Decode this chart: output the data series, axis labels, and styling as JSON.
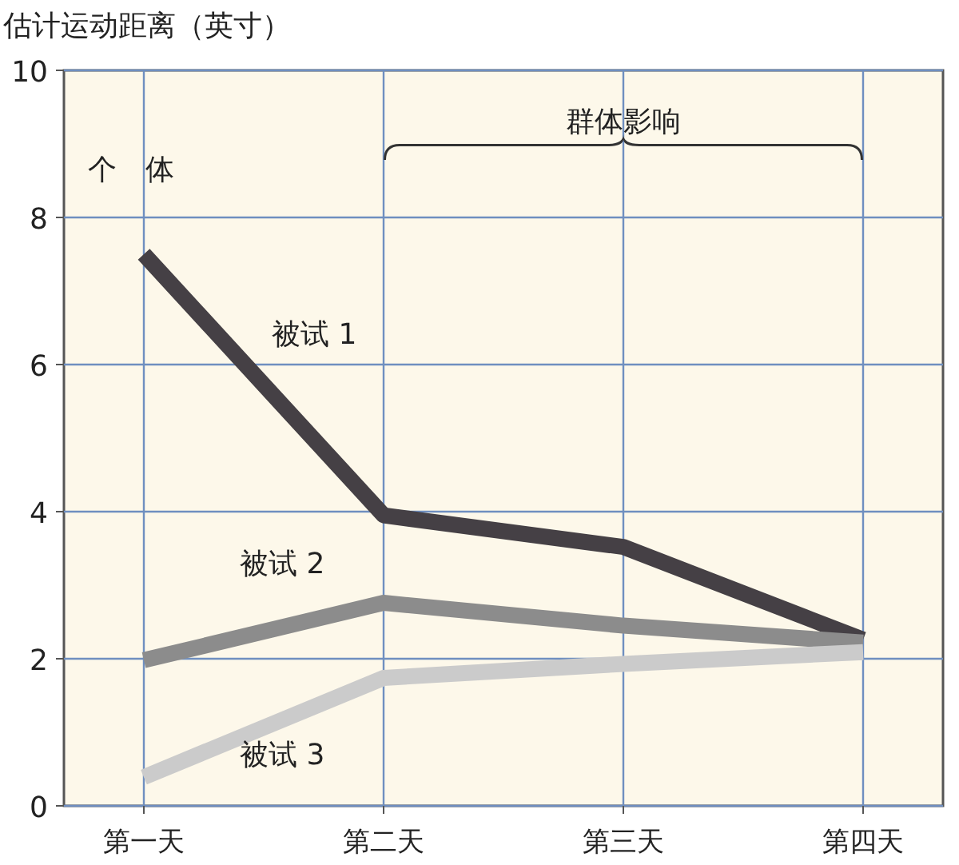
{
  "chart_data": {
    "type": "line",
    "ylabel": "估计运动距离（英寸）",
    "categories": [
      "第一天",
      "第二天",
      "第三天",
      "第四天"
    ],
    "series": [
      {
        "name": "被试 1",
        "color": "#454045",
        "values": [
          7.5,
          3.95,
          3.52,
          2.26
        ]
      },
      {
        "name": "被试 2",
        "color": "#8c8c8c",
        "values": [
          1.98,
          2.76,
          2.45,
          2.22
        ]
      },
      {
        "name": "被试 3",
        "color": "#cbcbcb",
        "values": [
          0.39,
          1.74,
          1.93,
          2.09
        ]
      }
    ],
    "ylim": [
      0,
      10
    ],
    "yticks": [
      0,
      2,
      4,
      6,
      8,
      10
    ],
    "grid": true,
    "legend": false,
    "marker": "none",
    "line_style": "solid",
    "annotations": [
      "个　体",
      "群体影响"
    ]
  }
}
